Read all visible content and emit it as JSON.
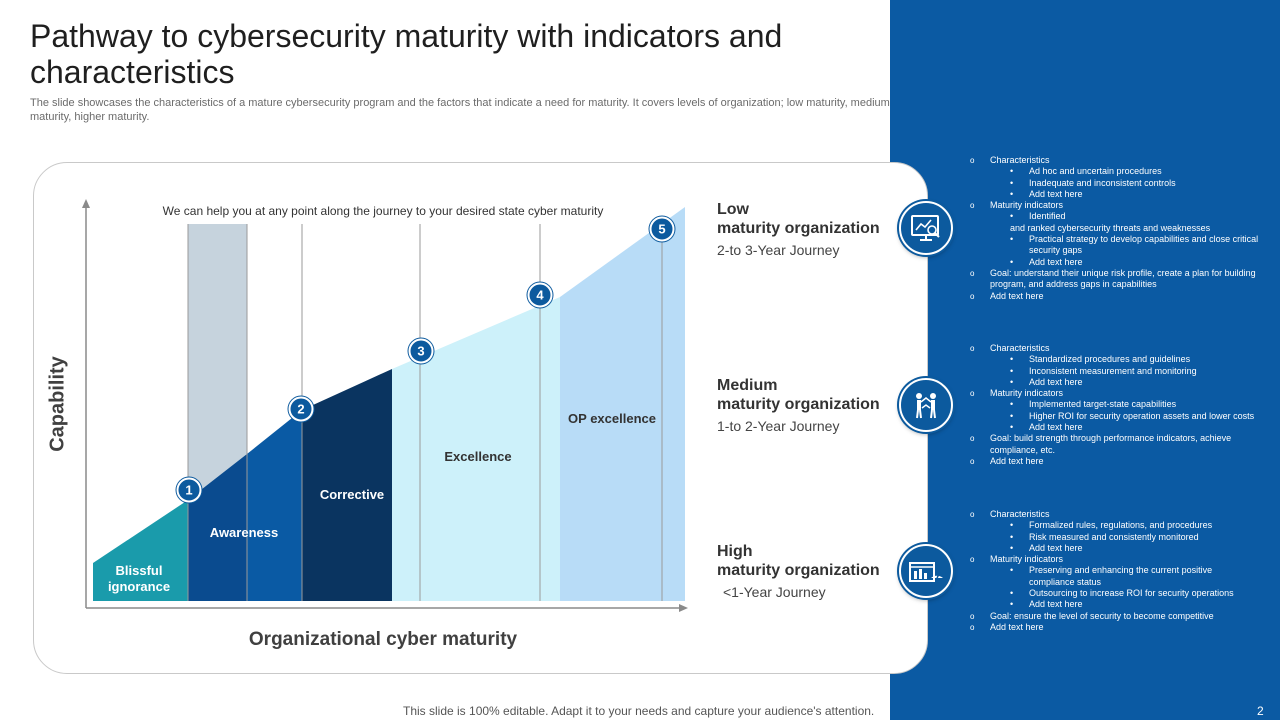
{
  "title": "Pathway to cybersecurity maturity with indicators and characteristics",
  "subtitle": "The slide showcases the characteristics of a mature cybersecurity program and the factors that indicate a need for maturity. It covers levels of organization; low maturity, medium maturity, higher maturity.",
  "chart_data": {
    "type": "diagram",
    "caption": "We can help you at any point along the journey to your desired state cyber maturity",
    "ylabel": "Capability",
    "xlabel": "Organizational cyber maturity",
    "stages": [
      {
        "label": "Blissful ignorance",
        "color": "#1a9bab"
      },
      {
        "label": "Awareness",
        "color": "#0a4f96"
      },
      {
        "label": "Corrective",
        "color": "#0a3460"
      },
      {
        "label": "Excellence",
        "color": "#cdf1fa"
      },
      {
        "label": "OP excellence",
        "color": "#b8dcf7"
      }
    ],
    "markers": [
      "1",
      "2",
      "3",
      "4",
      "5"
    ]
  },
  "organizations": [
    {
      "title_line1": "Low",
      "title_line2": "maturity organization",
      "journey": "2-to 3-Year Journey",
      "icon": "analysis-monitor-icon",
      "details": [
        {
          "text": "Characteristics",
          "sub": [
            "Ad hoc and uncertain procedures",
            "Inadequate and inconsistent controls",
            "Add text here"
          ]
        },
        {
          "text": "Maturity indicators",
          "sub": [
            "Identified",
            "Practical strategy to develop capabilities and close critical security gaps",
            "Add text here"
          ],
          "identified_extra": "and ranked cybersecurity threats and weaknesses"
        },
        {
          "text": "Goal: understand their unique risk profile, create a plan for building  program, and address gaps in capabilities",
          "sub": []
        },
        {
          "text": "Add text here",
          "sub": []
        }
      ]
    },
    {
      "title_line1": "Medium",
      "title_line2": "maturity organization",
      "journey": "1-to 2-Year Journey",
      "icon": "team-presentation-icon",
      "details": [
        {
          "text": "Characteristics",
          "sub": [
            "Standardized  procedures  and guidelines",
            "Inconsistent measurement and monitoring",
            "Add text here"
          ]
        },
        {
          "text": "Maturity indicators",
          "sub": [
            "Implemented target-state capabilities",
            "Higher ROI for security operation assets and lower costs",
            "Add text here"
          ]
        },
        {
          "text": "Goal: build strength through performance indicators, achieve compliance, etc.",
          "sub": []
        },
        {
          "text": "Add text here",
          "sub": []
        }
      ]
    },
    {
      "title_line1": "High",
      "title_line2": "maturity organization",
      "journey": "<1-Year Journey",
      "icon": "dashboard-gauge-icon",
      "details": [
        {
          "text": "Characteristics",
          "sub": [
            "Formalized rules, regulations, and procedures",
            "Risk measured and consistently monitored",
            "Add text here"
          ]
        },
        {
          "text": "Maturity indicators",
          "sub": [
            "Preserving and enhancing the current positive compliance status",
            "Outsourcing to increase ROI  for security operations",
            "Add text here"
          ]
        },
        {
          "text": "Goal: ensure the level of security to become competitive",
          "sub": []
        },
        {
          "text": "Add text here",
          "sub": []
        }
      ]
    }
  ],
  "footer": "This slide is 100% editable. Adapt it to your needs and capture your audience's attention.",
  "page_number": "2"
}
